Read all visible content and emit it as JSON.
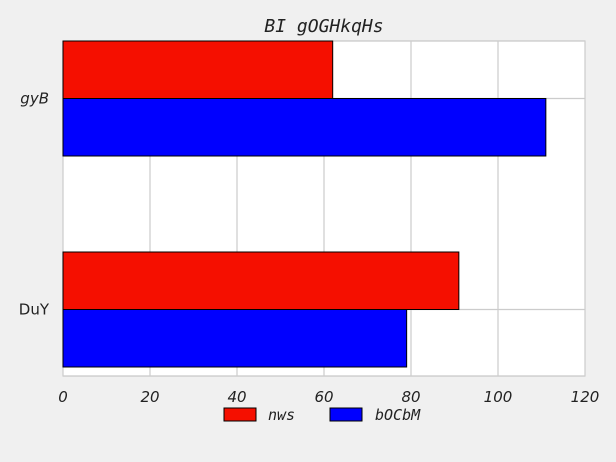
{
  "chart_data": {
    "type": "bar",
    "orientation": "horizontal",
    "title": "BI gOGHkqHs",
    "categories": [
      "gyB",
      "DuY"
    ],
    "series": [
      {
        "name": "nws",
        "color": "#f50f00",
        "values": [
          62,
          91
        ]
      },
      {
        "name": "bOCbM",
        "color": "#0000ff",
        "values": [
          111,
          79
        ]
      }
    ],
    "xlim": [
      0,
      120
    ],
    "xticks": [
      0,
      20,
      40,
      60,
      80,
      100,
      120
    ],
    "grid": true,
    "legend_position": "bottom-center"
  }
}
